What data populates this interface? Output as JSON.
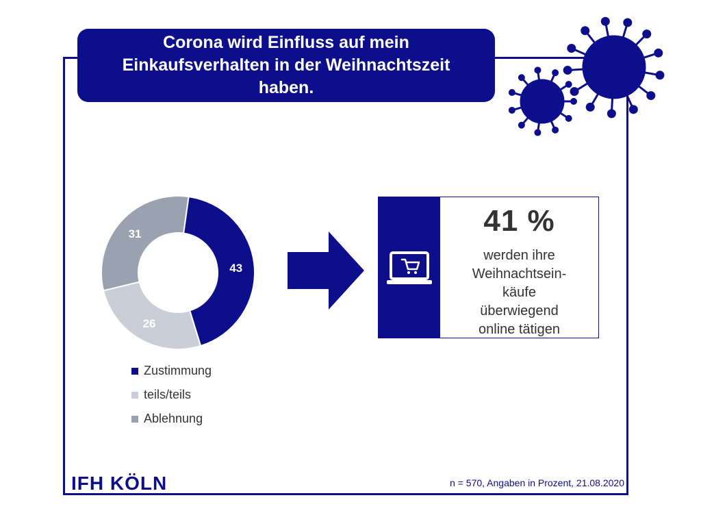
{
  "title": "Corona wird Einfluss auf mein Einkaufsverhalten in der Weihnachtszeit haben.",
  "colors": {
    "navy": "#0c0e8c",
    "light": "#c9ced8",
    "mid": "#9aa2b0"
  },
  "chart_data": {
    "type": "pie",
    "donut": true,
    "categories": [
      "Zustimmung",
      "teils/teils",
      "Ablehnung"
    ],
    "values": [
      43,
      26,
      31
    ],
    "labels": [
      "43",
      "26",
      "31"
    ],
    "colors": [
      "#0c0e8c",
      "#c9ced8",
      "#9aa2b0"
    ],
    "legend_position": "bottom"
  },
  "legend": [
    {
      "label": "Zustimmung",
      "color": "#0c0e8c"
    },
    {
      "label": "teils/teils",
      "color": "#c9ced8"
    },
    {
      "label": "Ablehnung",
      "color": "#9aa2b0"
    }
  ],
  "callout": {
    "percent": "41 %",
    "text_lines": [
      "werden ihre",
      "Weihnachtsein-",
      "käufe",
      "überwiegend",
      "online tätigen"
    ],
    "icon": "laptop-cart-icon"
  },
  "logo": "IFH KÖLN",
  "footnote": "n = 570, Angaben in Prozent, 21.08.2020",
  "decorations": [
    "virus-icon"
  ]
}
